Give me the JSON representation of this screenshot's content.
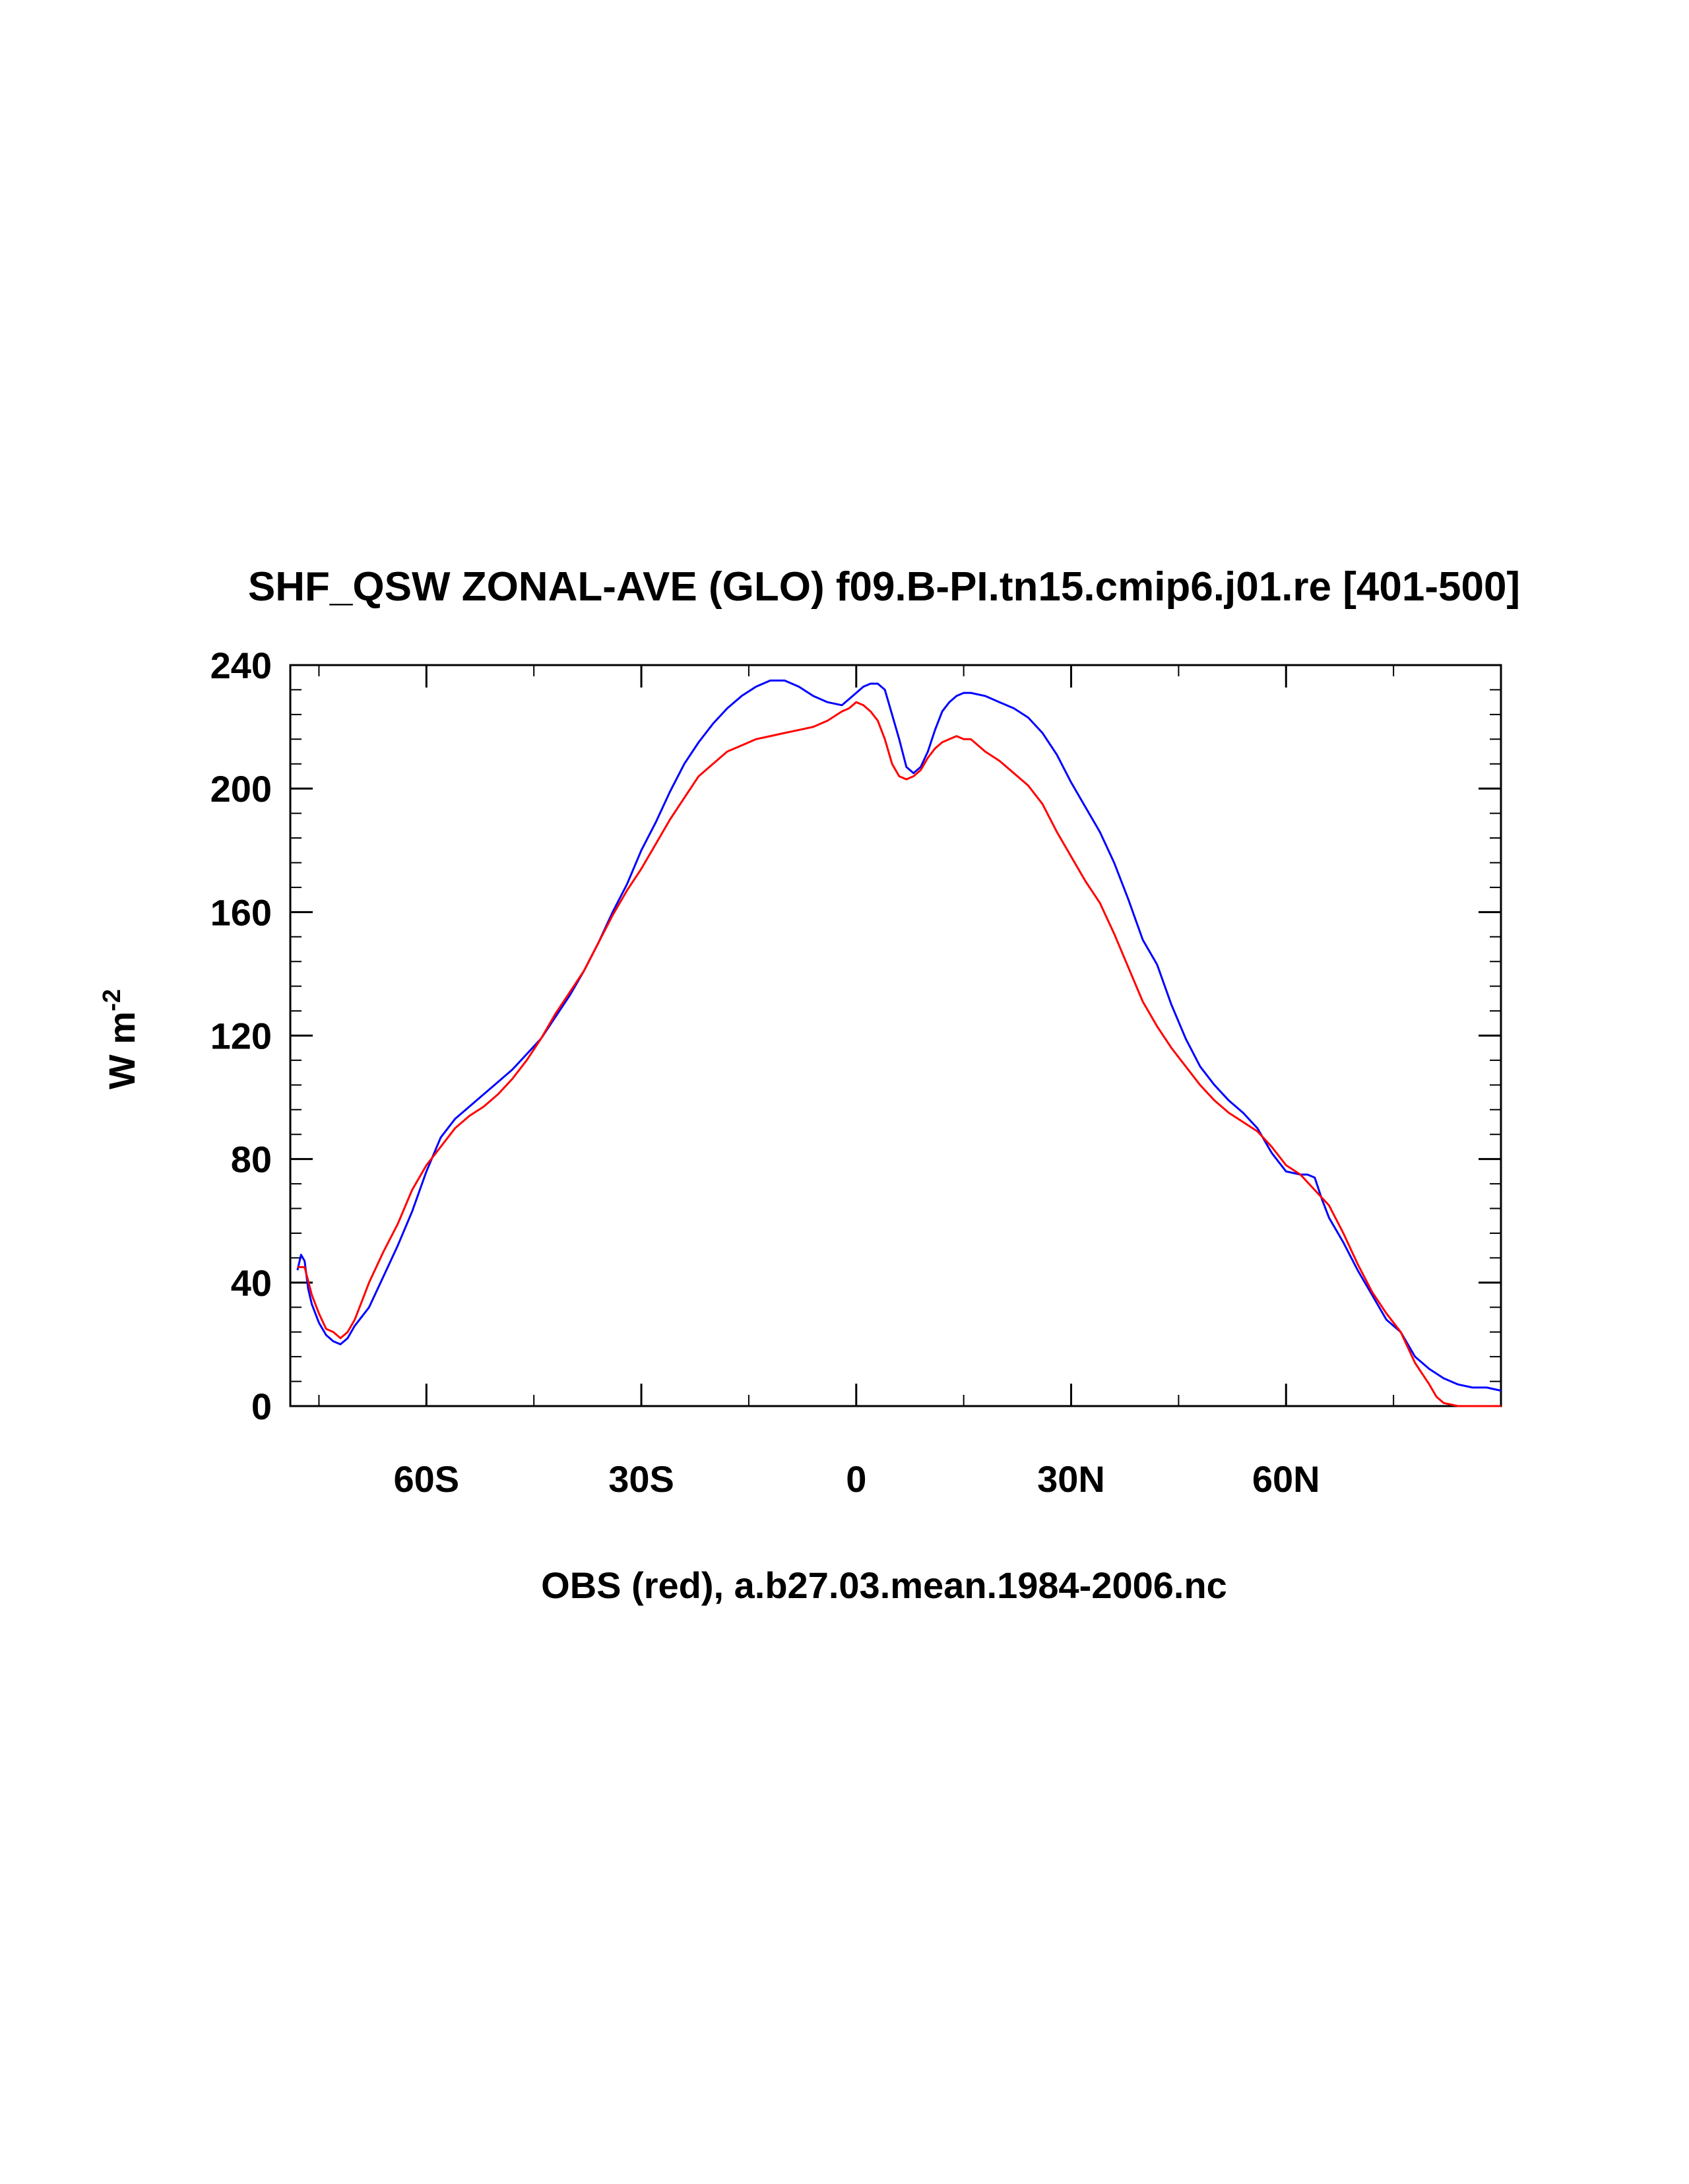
{
  "colors": {
    "model": "#0000ff",
    "obs": "#ff0000",
    "axis": "#000000"
  },
  "chart_data": {
    "type": "line",
    "title": "SHF_QSW ZONAL-AVE (GLO) f09.B-PI.tn15.cmip6.j01.re [401-500]",
    "xlabel": "OBS (red), a.b27.03.mean.1984-2006.nc",
    "ylabel": {
      "base": "W m",
      "sup": "-2"
    },
    "xlim": [
      -79,
      90
    ],
    "ylim": [
      0,
      240
    ],
    "x_ticks": [
      {
        "value": -60,
        "label": "60S"
      },
      {
        "value": -30,
        "label": "30S"
      },
      {
        "value": 0,
        "label": "0"
      },
      {
        "value": 30,
        "label": "30N"
      },
      {
        "value": 60,
        "label": "60N"
      }
    ],
    "y_ticks": [
      0,
      40,
      80,
      120,
      160,
      200,
      240
    ],
    "series": [
      {
        "color": "blue",
        "x": [
          -78,
          -77.5,
          -77,
          -76.5,
          -76,
          -75,
          -74,
          -73,
          -72,
          -71,
          -70,
          -69,
          -68,
          -66,
          -64,
          -62,
          -60,
          -58,
          -56,
          -54,
          -52,
          -50,
          -48,
          -46,
          -44,
          -42,
          -40,
          -38,
          -36,
          -34,
          -32,
          -30,
          -28,
          -26,
          -24,
          -22,
          -20,
          -18,
          -16,
          -14,
          -12,
          -10,
          -8,
          -6,
          -4,
          -2,
          -1,
          0,
          1,
          2,
          3,
          4,
          5,
          6,
          7,
          8,
          9,
          10,
          11,
          12,
          13,
          14,
          15,
          16,
          18,
          20,
          22,
          24,
          26,
          28,
          30,
          32,
          34,
          36,
          38,
          40,
          42,
          44,
          46,
          48,
          50,
          52,
          54,
          56,
          58,
          60,
          62,
          63,
          64,
          65,
          66,
          68,
          70,
          72,
          74,
          76,
          78,
          80,
          82,
          84,
          86,
          88,
          90
        ],
        "values": [
          44,
          49,
          47,
          38,
          33,
          27,
          23,
          21,
          20,
          22,
          26,
          29,
          32,
          42,
          52,
          63,
          76,
          87,
          93,
          97,
          101,
          105,
          109,
          114,
          119,
          126,
          133,
          141,
          150,
          160,
          169,
          180,
          189,
          199,
          208,
          215,
          221,
          226,
          230,
          233,
          235,
          235,
          233,
          230,
          228,
          227,
          229,
          231,
          233,
          234,
          234,
          232,
          224,
          216,
          207,
          205,
          207,
          212,
          219,
          225,
          228,
          230,
          231,
          231,
          230,
          228,
          226,
          223,
          218,
          211,
          202,
          194,
          186,
          176,
          164,
          151,
          143,
          130,
          119,
          110,
          104,
          99,
          95,
          90,
          82,
          76,
          75,
          75,
          74,
          67,
          61,
          53,
          44,
          36,
          28,
          24,
          16,
          12,
          9,
          7,
          6,
          6,
          5
        ]
      },
      {
        "color": "red",
        "x": [
          -78,
          -77,
          -76,
          -75,
          -74,
          -73,
          -72,
          -71,
          -70,
          -69,
          -68,
          -66,
          -64,
          -62,
          -60,
          -58,
          -56,
          -54,
          -52,
          -50,
          -48,
          -46,
          -44,
          -42,
          -40,
          -38,
          -36,
          -34,
          -32,
          -30,
          -28,
          -26,
          -24,
          -22,
          -20,
          -18,
          -16,
          -14,
          -12,
          -10,
          -8,
          -6,
          -4,
          -2,
          -1,
          0,
          1,
          2,
          3,
          4,
          5,
          6,
          7,
          8,
          9,
          10,
          11,
          12,
          13,
          14,
          15,
          16,
          18,
          20,
          22,
          24,
          26,
          28,
          30,
          32,
          34,
          36,
          38,
          40,
          42,
          44,
          46,
          48,
          50,
          52,
          54,
          56,
          58,
          60,
          62,
          64,
          66,
          68,
          70,
          72,
          74,
          76,
          78,
          80,
          81,
          82,
          84,
          86,
          88,
          90
        ],
        "values": [
          45,
          45,
          36,
          30,
          25,
          24,
          22,
          24,
          28,
          34,
          40,
          50,
          59,
          70,
          78,
          84,
          90,
          94,
          97,
          101,
          106,
          112,
          119,
          127,
          134,
          141,
          150,
          159,
          167,
          174,
          182,
          190,
          197,
          204,
          208,
          212,
          214,
          216,
          217,
          218,
          219,
          220,
          222,
          225,
          226,
          228,
          227,
          225,
          222,
          216,
          208,
          204,
          203,
          204,
          206,
          210,
          213,
          215,
          216,
          217,
          216,
          216,
          212,
          209,
          205,
          201,
          195,
          186,
          178,
          170,
          163,
          153,
          142,
          131,
          123,
          116,
          110,
          104,
          99,
          95,
          92,
          89,
          84,
          78,
          75,
          70,
          65,
          56,
          46,
          37,
          30,
          24,
          14,
          7,
          3,
          1,
          0,
          0,
          0,
          0
        ]
      }
    ]
  }
}
